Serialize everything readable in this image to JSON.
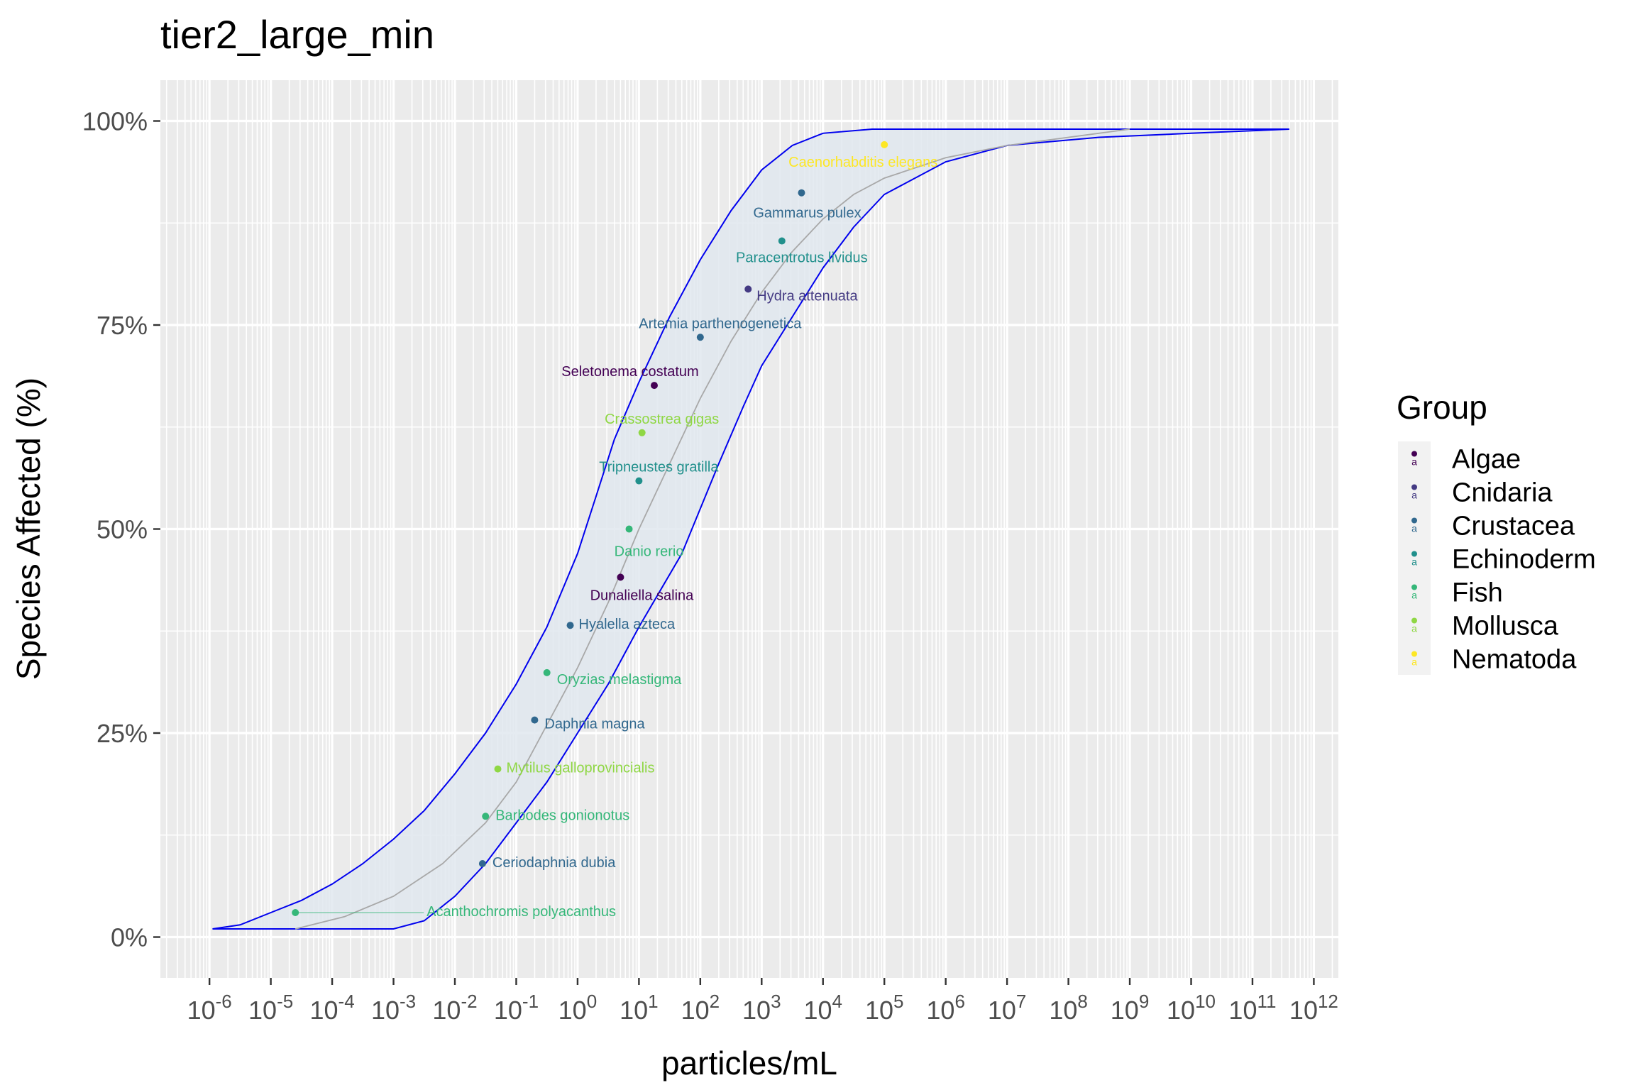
{
  "chart_data": {
    "type": "scatter",
    "title": "tier2_large_min",
    "xlabel": "particles/mL",
    "ylabel": "Species Affected (%)",
    "x_scale": "log10",
    "xlim_log10": [
      -6.8,
      12.4
    ],
    "ylim": [
      -5,
      105
    ],
    "x_ticks": [
      {
        "base": "10",
        "exp": "-6",
        "log10": -6
      },
      {
        "base": "10",
        "exp": "-5",
        "log10": -5
      },
      {
        "base": "10",
        "exp": "-4",
        "log10": -4
      },
      {
        "base": "10",
        "exp": "-3",
        "log10": -3
      },
      {
        "base": "10",
        "exp": "-2",
        "log10": -2
      },
      {
        "base": "10",
        "exp": "-1",
        "log10": -1
      },
      {
        "base": "10",
        "exp": "0",
        "log10": 0
      },
      {
        "base": "10",
        "exp": "1",
        "log10": 1
      },
      {
        "base": "10",
        "exp": "2",
        "log10": 2
      },
      {
        "base": "10",
        "exp": "3",
        "log10": 3
      },
      {
        "base": "10",
        "exp": "4",
        "log10": 4
      },
      {
        "base": "10",
        "exp": "5",
        "log10": 5
      },
      {
        "base": "10",
        "exp": "6",
        "log10": 6
      },
      {
        "base": "10",
        "exp": "7",
        "log10": 7
      },
      {
        "base": "10",
        "exp": "8",
        "log10": 8
      },
      {
        "base": "10",
        "exp": "9",
        "log10": 9
      },
      {
        "base": "10",
        "exp": "10",
        "log10": 10
      },
      {
        "base": "10",
        "exp": "11",
        "log10": 11
      },
      {
        "base": "10",
        "exp": "12",
        "log10": 12
      }
    ],
    "y_ticks": [
      {
        "label": "0%",
        "value": 0
      },
      {
        "label": "25%",
        "value": 25
      },
      {
        "label": "50%",
        "value": 50
      },
      {
        "label": "75%",
        "value": 75
      },
      {
        "label": "100%",
        "value": 100
      }
    ],
    "grid": true,
    "legend": {
      "title": "Group",
      "position": "right",
      "items": [
        {
          "name": "Algae",
          "color": "#440154"
        },
        {
          "name": "Cnidaria",
          "color": "#443A83"
        },
        {
          "name": "Crustacea",
          "color": "#31688E"
        },
        {
          "name": "Echinoderm",
          "color": "#21908C"
        },
        {
          "name": "Fish",
          "color": "#35B779"
        },
        {
          "name": "Mollusca",
          "color": "#8FD744"
        },
        {
          "name": "Nematoda",
          "color": "#FDE725"
        }
      ]
    },
    "points": [
      {
        "species": "Acanthochromis polyacanthus",
        "group": "Fish",
        "log10_x": -4.6,
        "y": 3.0,
        "color": "#35B779"
      },
      {
        "species": "Ceriodaphnia dubia",
        "group": "Crustacea",
        "log10_x": -1.55,
        "y": 9.0,
        "color": "#31688E"
      },
      {
        "species": "Barbodes gonionotus",
        "group": "Fish",
        "log10_x": -1.5,
        "y": 14.8,
        "color": "#35B779"
      },
      {
        "species": "Mytilus galloprovincialis",
        "group": "Mollusca",
        "log10_x": -1.3,
        "y": 20.6,
        "color": "#8FD744"
      },
      {
        "species": "Daphnia magna",
        "group": "Crustacea",
        "log10_x": -0.7,
        "y": 26.6,
        "color": "#31688E"
      },
      {
        "species": "Oryzias melastigma",
        "group": "Fish",
        "log10_x": -0.5,
        "y": 32.4,
        "color": "#35B779"
      },
      {
        "species": "Hyalella azteca",
        "group": "Crustacea",
        "log10_x": -0.12,
        "y": 38.2,
        "color": "#31688E"
      },
      {
        "species": "Dunaliella salina",
        "group": "Algae",
        "log10_x": 0.7,
        "y": 44.1,
        "color": "#440154"
      },
      {
        "species": "Danio rerio",
        "group": "Fish",
        "log10_x": 0.84,
        "y": 50.0,
        "color": "#35B779"
      },
      {
        "species": "Tripneustes gratilla",
        "group": "Echinoderm",
        "log10_x": 1.0,
        "y": 55.9,
        "color": "#21908C"
      },
      {
        "species": "Crassostrea gigas",
        "group": "Mollusca",
        "log10_x": 1.05,
        "y": 61.8,
        "color": "#8FD744"
      },
      {
        "species": "Seletonema costatum",
        "group": "Algae",
        "log10_x": 1.25,
        "y": 67.6,
        "color": "#440154"
      },
      {
        "species": "Artemia parthenogenetica",
        "group": "Crustacea",
        "log10_x": 2.0,
        "y": 73.5,
        "color": "#31688E"
      },
      {
        "species": "Hydra attenuata",
        "group": "Cnidaria",
        "log10_x": 2.78,
        "y": 79.4,
        "color": "#443A83"
      },
      {
        "species": "Paracentrotus lividus",
        "group": "Echinoderm",
        "log10_x": 3.33,
        "y": 85.3,
        "color": "#21908C"
      },
      {
        "species": "Gammarus pulex",
        "group": "Crustacea",
        "log10_x": 3.65,
        "y": 91.2,
        "color": "#31688E"
      },
      {
        "species": "Caenorhabditis elegans",
        "group": "Nematoda",
        "log10_x": 5.0,
        "y": 97.1,
        "color": "#FDE725"
      }
    ],
    "fit_curve": [
      [
        -4.6,
        1
      ],
      [
        -3.8,
        2.5
      ],
      [
        -3,
        5
      ],
      [
        -2.2,
        9
      ],
      [
        -1.5,
        14
      ],
      [
        -1,
        19
      ],
      [
        -0.5,
        26
      ],
      [
        0,
        33
      ],
      [
        0.5,
        41
      ],
      [
        1,
        50
      ],
      [
        1.5,
        58
      ],
      [
        2,
        66
      ],
      [
        2.5,
        73
      ],
      [
        3,
        79
      ],
      [
        3.5,
        84
      ],
      [
        4,
        88
      ],
      [
        4.5,
        91
      ],
      [
        5,
        93
      ],
      [
        6,
        95.5
      ],
      [
        7,
        97
      ],
      [
        8,
        98
      ],
      [
        9,
        99
      ]
    ],
    "ci_upper": [
      [
        -5.95,
        1
      ],
      [
        -5.5,
        1.5
      ],
      [
        -5,
        3
      ],
      [
        -4.5,
        4.5
      ],
      [
        -4,
        6.5
      ],
      [
        -3.5,
        9
      ],
      [
        -3,
        12
      ],
      [
        -2.5,
        15.5
      ],
      [
        -2,
        20
      ],
      [
        -1.5,
        25
      ],
      [
        -1,
        31
      ],
      [
        -0.5,
        38
      ],
      [
        0,
        47
      ],
      [
        0.3,
        54
      ],
      [
        0.6,
        61
      ],
      [
        1,
        68
      ],
      [
        1.5,
        76
      ],
      [
        2,
        83
      ],
      [
        2.5,
        89
      ],
      [
        3,
        94
      ],
      [
        3.5,
        97
      ],
      [
        4,
        98.5
      ],
      [
        4.8,
        99
      ],
      [
        11.6,
        99
      ]
    ],
    "ci_lower": [
      [
        11.6,
        99
      ],
      [
        10,
        98.5
      ],
      [
        8.5,
        98
      ],
      [
        7,
        97
      ],
      [
        6,
        95
      ],
      [
        5,
        91
      ],
      [
        4.5,
        87
      ],
      [
        4,
        82
      ],
      [
        3.5,
        76
      ],
      [
        3,
        70
      ],
      [
        2.7,
        65
      ],
      [
        2.3,
        58
      ],
      [
        1.7,
        47
      ],
      [
        1,
        38
      ],
      [
        0.5,
        31
      ],
      [
        0,
        25
      ],
      [
        -0.5,
        19
      ],
      [
        -1,
        14
      ],
      [
        -1.5,
        9
      ],
      [
        -2,
        5
      ],
      [
        -2.5,
        2
      ],
      [
        -3,
        1
      ],
      [
        -5.95,
        1
      ]
    ]
  }
}
